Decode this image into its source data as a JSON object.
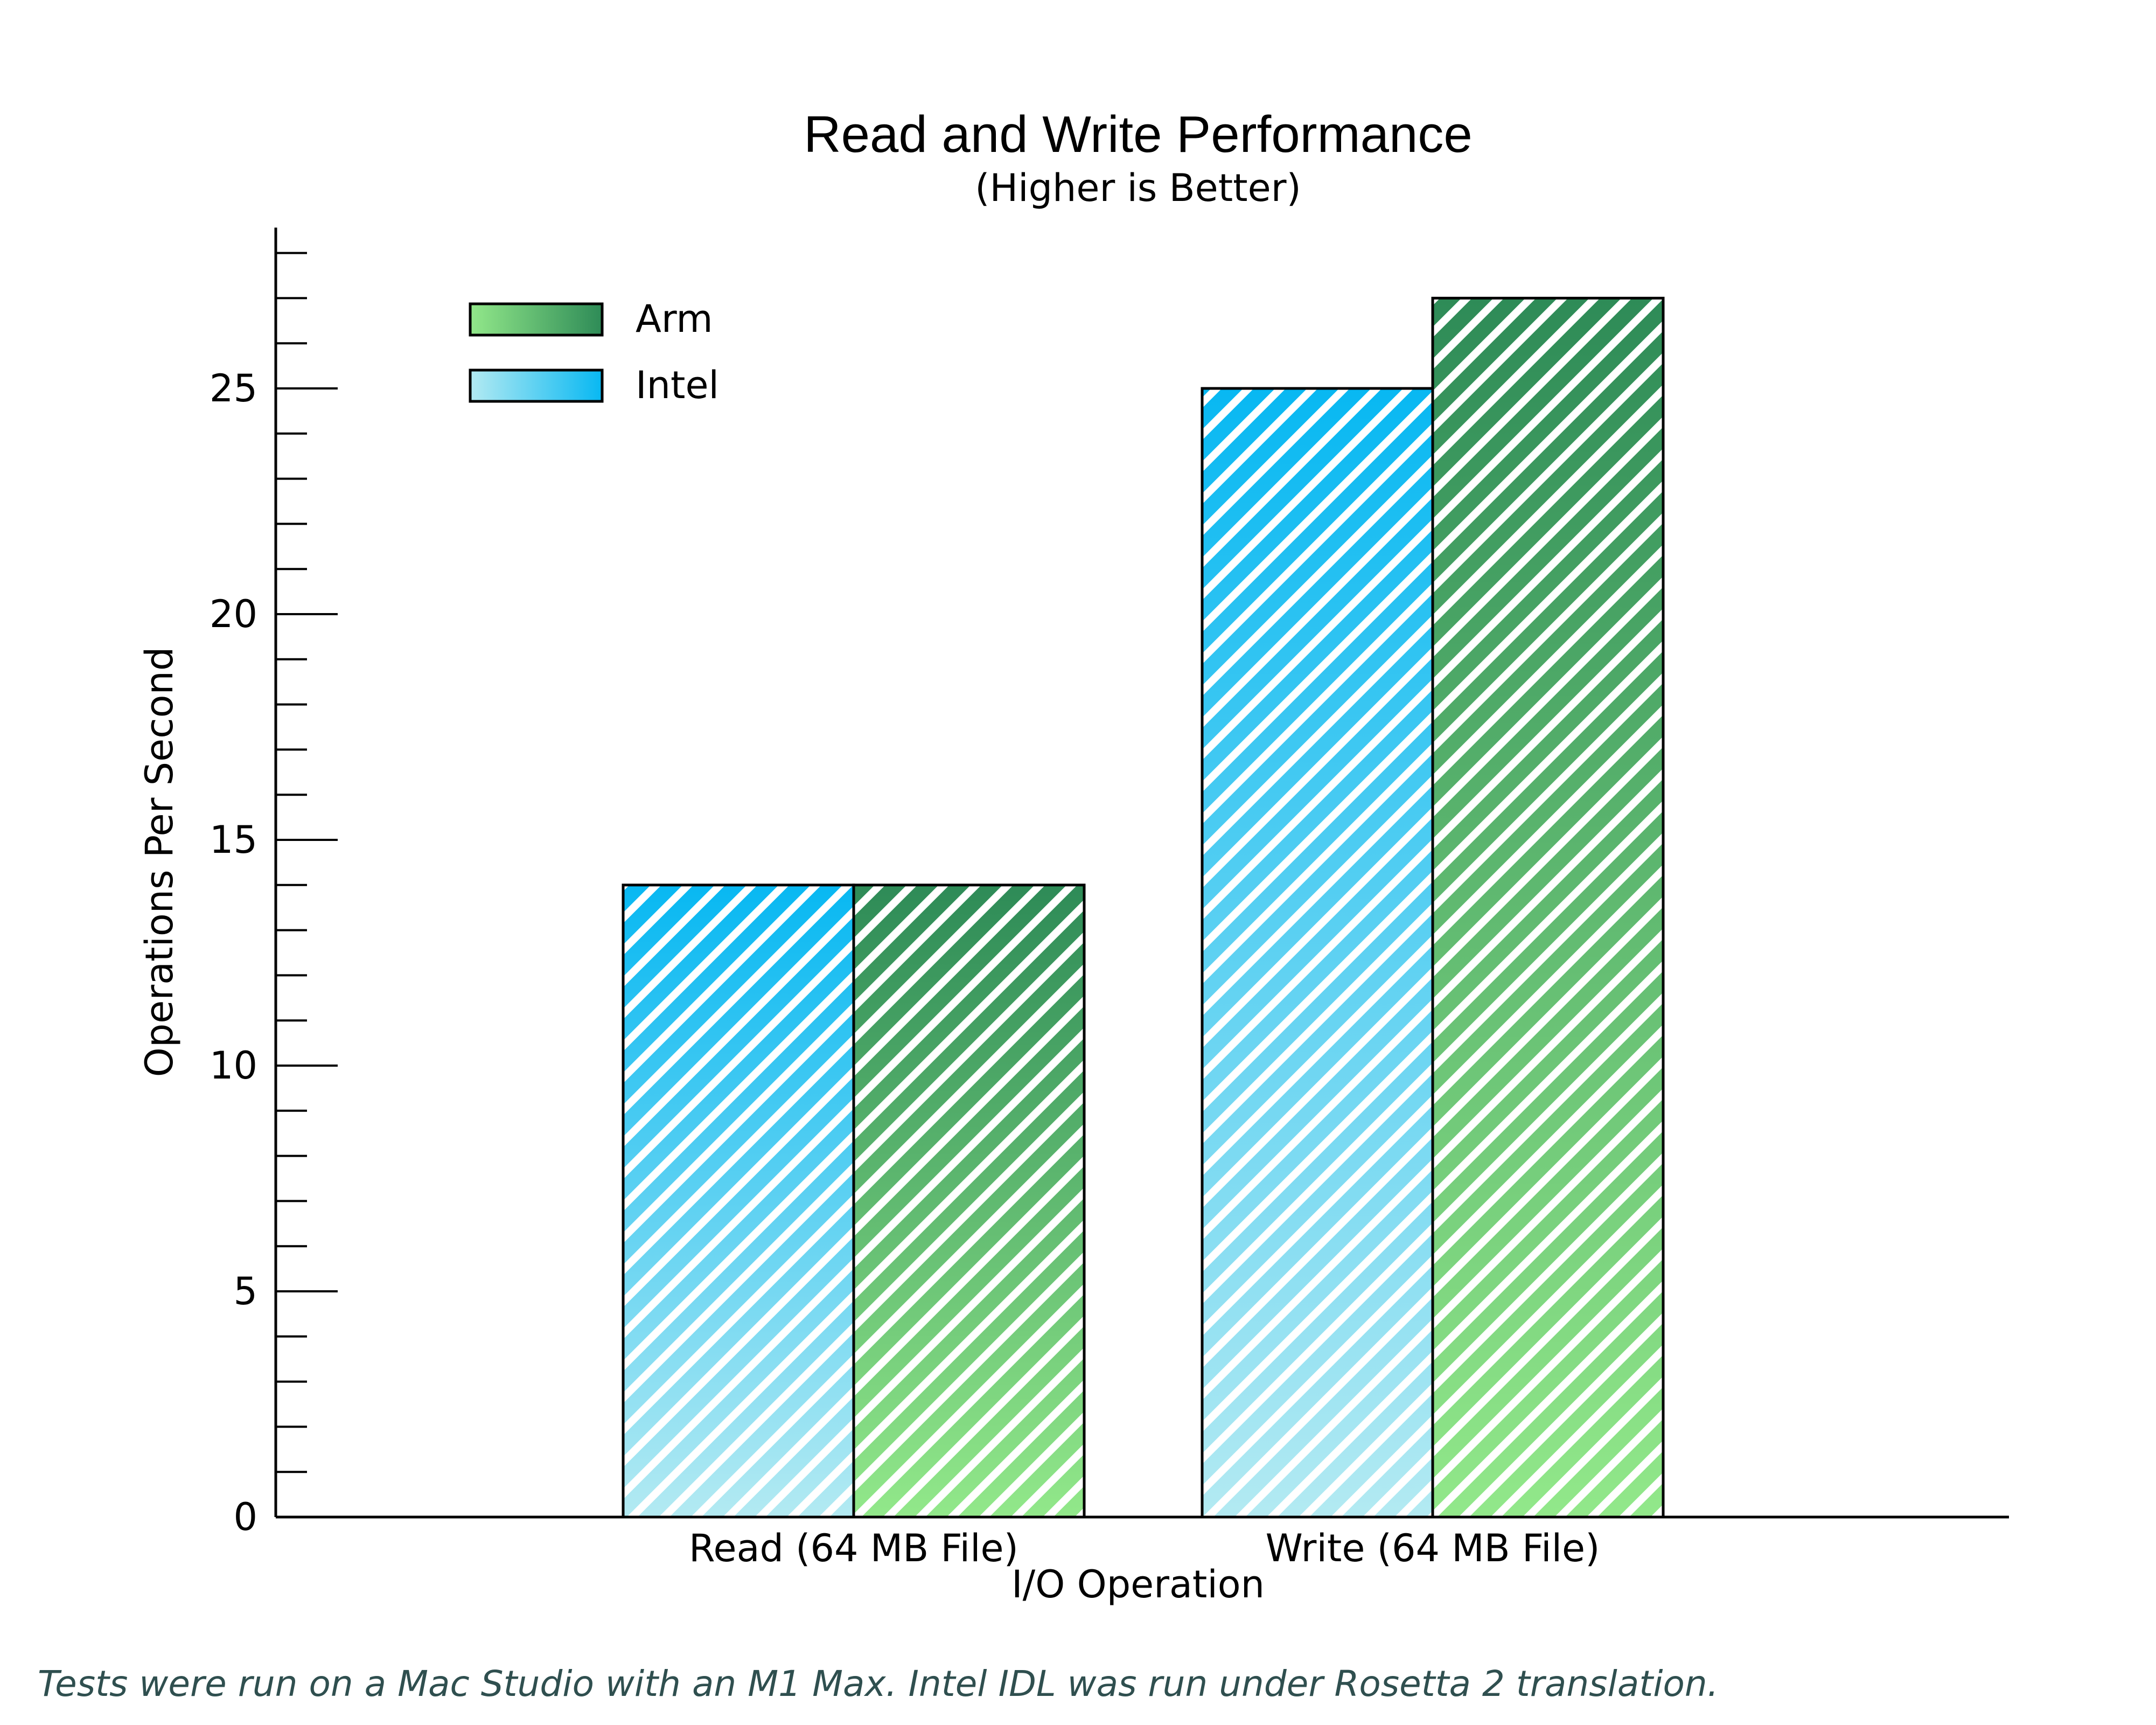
{
  "title": "Read and Write Performance",
  "subtitle": "(Higher is Better)",
  "footnote": "Tests were run on a Mac Studio with an M1 Max.  Intel IDL was run under Rosetta 2 translation.",
  "chart_data": {
    "type": "bar",
    "title": "Read and Write Performance",
    "subtitle": "(Higher is Better)",
    "xlabel": "I/O Operation",
    "ylabel": "Operations Per Second",
    "categories": [
      "Read (64 MB File)",
      "Write (64 MB File)"
    ],
    "series": [
      {
        "name": "Intel",
        "values": [
          14,
          25
        ],
        "color_light": "#b3eaf2",
        "color_dark": "#08b8f2"
      },
      {
        "name": "Arm",
        "values": [
          14,
          27
        ],
        "color_light": "#92e88a",
        "color_dark": "#2e8b57"
      }
    ],
    "ylim": [
      0,
      28.8
    ],
    "yticks": [
      0,
      5,
      10,
      15,
      20,
      25
    ],
    "yticks_minor_step": 1,
    "legend_order": [
      "Arm",
      "Intel"
    ],
    "legend_position": "top-left",
    "grid": false,
    "hatch": "diagonal stripes"
  }
}
